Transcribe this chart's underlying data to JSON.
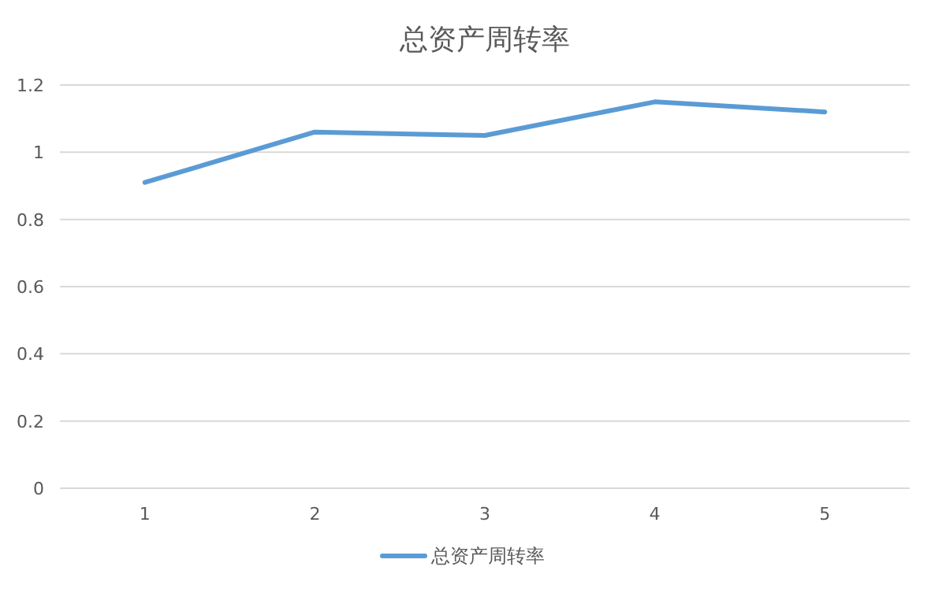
{
  "chart_data": {
    "type": "line",
    "title": "总资产周转率",
    "categories": [
      "1",
      "2",
      "3",
      "4",
      "5"
    ],
    "series": [
      {
        "name": "总资产周转率",
        "color": "#5b9bd5",
        "values": [
          0.91,
          1.06,
          1.05,
          1.15,
          1.12
        ]
      }
    ],
    "ylim": [
      0,
      1.2
    ],
    "yticks": [
      0,
      0.2,
      0.4,
      0.6,
      0.8,
      1,
      1.2
    ],
    "grid": "y",
    "legend": "bottom",
    "marker": "none",
    "line_style": "solid"
  }
}
